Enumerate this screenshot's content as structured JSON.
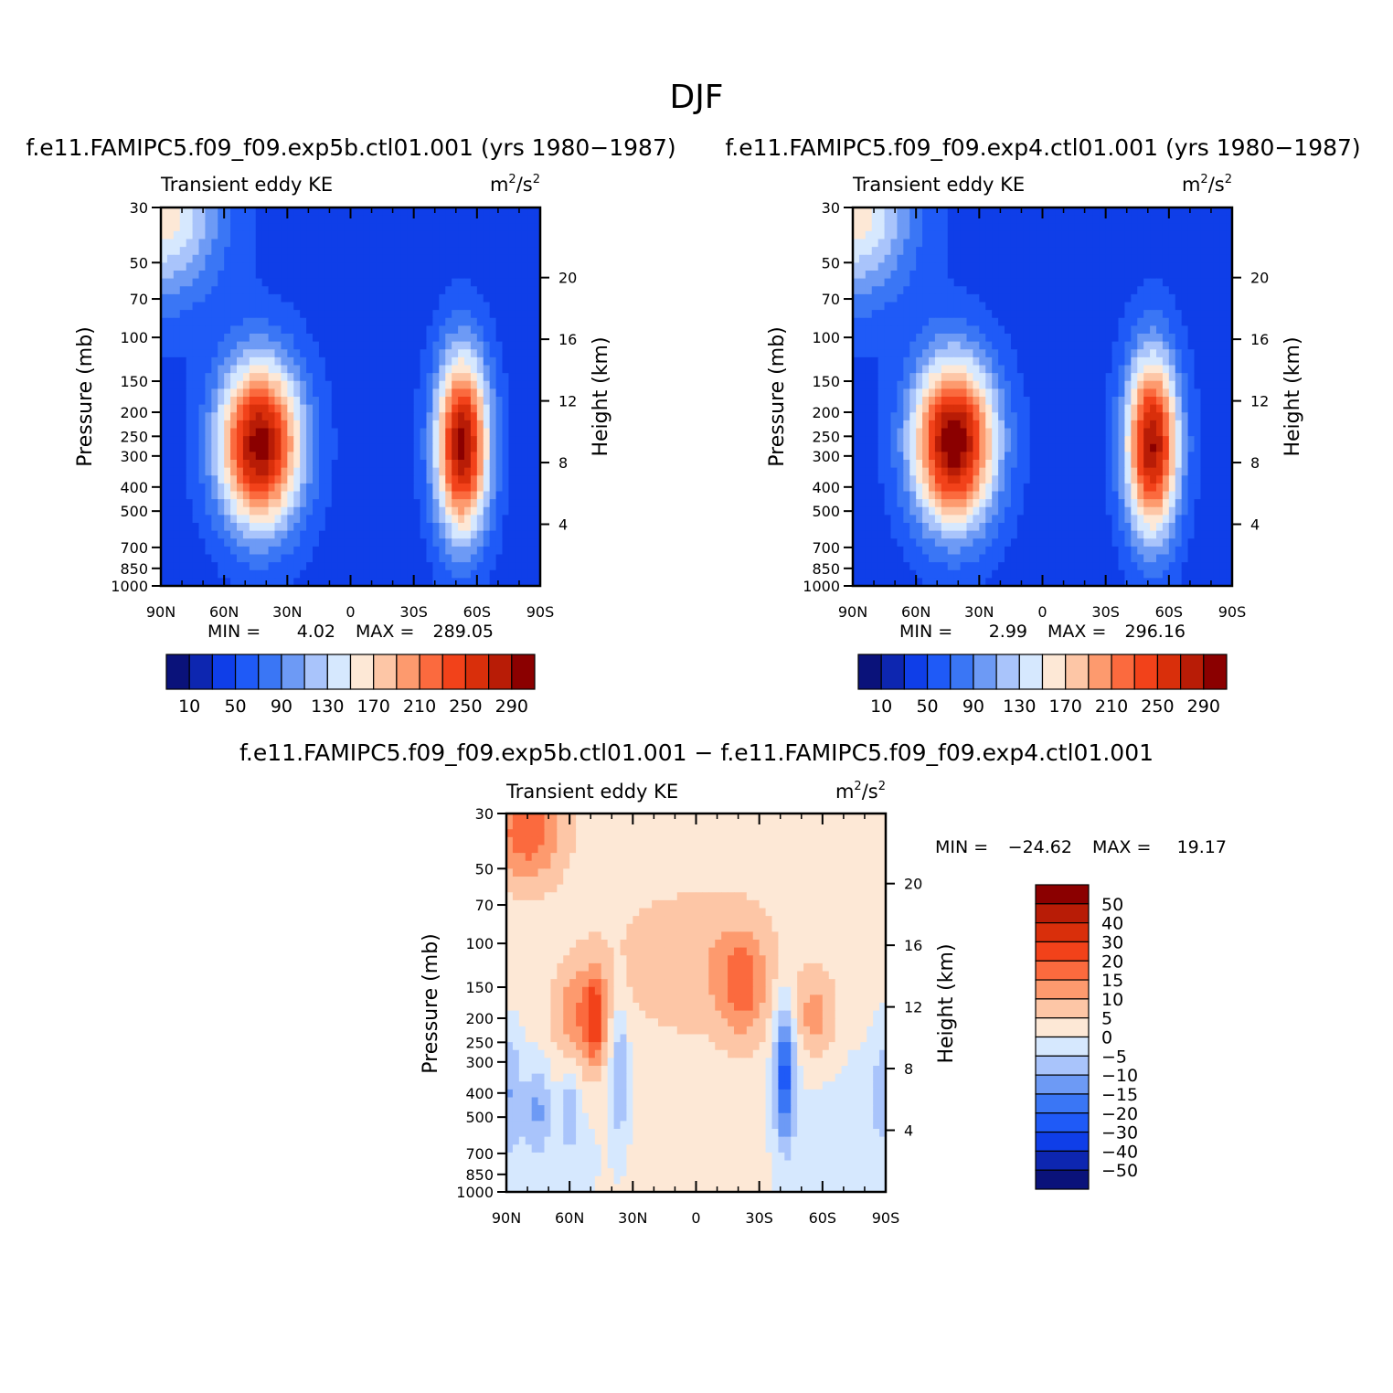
{
  "figure": {
    "title": "DJF"
  },
  "colors": {
    "abs_scale": [
      "#0a127a",
      "#0d26b0",
      "#0f3ee8",
      "#1f5af7",
      "#3a76f5",
      "#6d9af5",
      "#a9c4fb",
      "#d6e8fe",
      "#fde8d6",
      "#fdc6a6",
      "#fd9a6e",
      "#fb6a3e",
      "#f2421a",
      "#d92f0b",
      "#b81c06",
      "#8b0000"
    ],
    "diff_scale": [
      "#0a127a",
      "#0d26b0",
      "#0f3ee8",
      "#1f5af7",
      "#3a76f5",
      "#6d9af5",
      "#a9c4fb",
      "#d6e8fe",
      "#fde8d6",
      "#fdc6a6",
      "#fd9a6e",
      "#fb6a3e",
      "#f2421a",
      "#d92f0b",
      "#b81c06",
      "#8b0000"
    ]
  },
  "chart_data": [
    {
      "type": "heatmap",
      "id": "panel1",
      "title": "f.e11.FAMIPC5.f09_f09.exp5b.ctl01.001 (yrs 1980−1987)",
      "left_label": "Transient eddy KE",
      "units_base": "m",
      "units_sup": "2",
      "units_mid": "/s",
      "units_sup2": "2",
      "ylabel": "Pressure (mb)",
      "ylabel_right": "Height (km)",
      "x_ticks": [
        "90N",
        "60N",
        "30N",
        "0",
        "30S",
        "60S",
        "90S"
      ],
      "x_range": [
        90,
        -90
      ],
      "y_ticks": [
        "30",
        "50",
        "70",
        "100",
        "150",
        "200",
        "250",
        "300",
        "400",
        "500",
        "700",
        "850",
        "1000"
      ],
      "y_tick_values": [
        30,
        50,
        70,
        100,
        150,
        200,
        250,
        300,
        400,
        500,
        700,
        850,
        1000
      ],
      "y_range": [
        30,
        1000
      ],
      "y_scale": "log",
      "height_ticks": [
        "20",
        "16",
        "12",
        "8",
        "4"
      ],
      "height_tick_values": [
        20,
        16,
        12,
        8,
        4
      ],
      "min_label": "MIN =",
      "min_value": "4.02",
      "max_label": "MAX =",
      "max_value": "289.05",
      "colorbar_labels": [
        "10",
        "50",
        "90",
        "130",
        "170",
        "210",
        "250",
        "290"
      ],
      "field": {
        "background": 40,
        "blobs": [
          {
            "lat": 43,
            "p": 270,
            "value": 285,
            "sx": 14,
            "sy": 0.55
          },
          {
            "lat": -53,
            "p": 270,
            "value": 280,
            "sx": 9,
            "sy": 0.6
          },
          {
            "lat": 90,
            "p": 30,
            "value": 150,
            "sx": 20,
            "sy": 0.6
          }
        ]
      }
    },
    {
      "type": "heatmap",
      "id": "panel2",
      "title": "f.e11.FAMIPC5.f09_f09.exp4.ctl01.001 (yrs 1980−1987)",
      "left_label": "Transient eddy KE",
      "units_base": "m",
      "units_sup": "2",
      "units_mid": "/s",
      "units_sup2": "2",
      "ylabel": "Pressure (mb)",
      "ylabel_right": "Height (km)",
      "x_ticks": [
        "90N",
        "60N",
        "30N",
        "0",
        "30S",
        "60S",
        "90S"
      ],
      "x_range": [
        90,
        -90
      ],
      "y_ticks": [
        "30",
        "50",
        "70",
        "100",
        "150",
        "200",
        "250",
        "300",
        "400",
        "500",
        "700",
        "850",
        "1000"
      ],
      "y_tick_values": [
        30,
        50,
        70,
        100,
        150,
        200,
        250,
        300,
        400,
        500,
        700,
        850,
        1000
      ],
      "y_range": [
        30,
        1000
      ],
      "y_scale": "log",
      "height_ticks": [
        "20",
        "16",
        "12",
        "8",
        "4"
      ],
      "height_tick_values": [
        20,
        16,
        12,
        8,
        4
      ],
      "min_label": "MIN =",
      "min_value": "2.99",
      "max_label": "MAX =",
      "max_value": "296.16",
      "colorbar_labels": [
        "10",
        "50",
        "90",
        "130",
        "170",
        "210",
        "250",
        "290"
      ],
      "field": {
        "background": 40,
        "blobs": [
          {
            "lat": 42,
            "p": 265,
            "value": 292,
            "sx": 14,
            "sy": 0.55
          },
          {
            "lat": -52,
            "p": 270,
            "value": 275,
            "sx": 9,
            "sy": 0.6
          },
          {
            "lat": 90,
            "p": 30,
            "value": 150,
            "sx": 20,
            "sy": 0.6
          }
        ]
      }
    },
    {
      "type": "heatmap",
      "id": "panel3",
      "title": "f.e11.FAMIPC5.f09_f09.exp5b.ctl01.001 − f.e11.FAMIPC5.f09_f09.exp4.ctl01.001",
      "left_label": "Transient eddy KE",
      "units_base": "m",
      "units_sup": "2",
      "units_mid": "/s",
      "units_sup2": "2",
      "ylabel": "Pressure (mb)",
      "ylabel_right": "Height (km)",
      "x_ticks": [
        "90N",
        "60N",
        "30N",
        "0",
        "30S",
        "60S",
        "90S"
      ],
      "x_range": [
        90,
        -90
      ],
      "y_ticks": [
        "30",
        "50",
        "70",
        "100",
        "150",
        "200",
        "250",
        "300",
        "400",
        "500",
        "700",
        "850",
        "1000"
      ],
      "y_tick_values": [
        30,
        50,
        70,
        100,
        150,
        200,
        250,
        300,
        400,
        500,
        700,
        850,
        1000
      ],
      "y_range": [
        30,
        1000
      ],
      "y_scale": "log",
      "height_ticks": [
        "20",
        "16",
        "12",
        "8",
        "4"
      ],
      "height_tick_values": [
        20,
        16,
        12,
        8,
        4
      ],
      "min_label": "MIN =",
      "min_value": "−24.62",
      "max_label": "MAX =",
      "max_value": "19.17",
      "colorbar_labels": [
        "50",
        "40",
        "30",
        "20",
        "15",
        "10",
        "5",
        "0",
        "−5",
        "−10",
        "−15",
        "−20",
        "−30",
        "−40",
        "−50"
      ],
      "field": {
        "background": 2,
        "blobs": [
          {
            "lat": 80,
            "p": 35,
            "value": 18,
            "sx": 12,
            "sy": 0.35
          },
          {
            "lat": 55,
            "p": 200,
            "value": 14,
            "sx": 9,
            "sy": 0.35
          },
          {
            "lat": 48,
            "p": 200,
            "value": 16,
            "sx": 3,
            "sy": 0.3
          },
          {
            "lat": -22,
            "p": 150,
            "value": 14,
            "sx": 8,
            "sy": 0.35
          },
          {
            "lat": -57,
            "p": 200,
            "value": 12,
            "sx": 7,
            "sy": 0.3
          },
          {
            "lat": 0,
            "p": 120,
            "value": 8,
            "sx": 30,
            "sy": 0.5
          },
          {
            "lat": -42,
            "p": 330,
            "value": -24,
            "sx": 3.5,
            "sy": 0.45
          },
          {
            "lat": 36,
            "p": 320,
            "value": -13,
            "sx": 3,
            "sy": 0.45
          },
          {
            "lat": 88,
            "p": 380,
            "value": -10,
            "sx": 4,
            "sy": 0.4
          },
          {
            "lat": 75,
            "p": 450,
            "value": -10,
            "sx": 4,
            "sy": 0.3
          },
          {
            "lat": 60,
            "p": 450,
            "value": -9,
            "sx": 3,
            "sy": 0.3
          },
          {
            "lat": -88,
            "p": 380,
            "value": -8,
            "sx": 3,
            "sy": 0.4
          },
          {
            "lat": 75,
            "p": 700,
            "value": -4,
            "sx": 25,
            "sy": 0.6
          },
          {
            "lat": -70,
            "p": 600,
            "value": -4,
            "sx": 25,
            "sy": 0.8
          }
        ]
      }
    }
  ]
}
